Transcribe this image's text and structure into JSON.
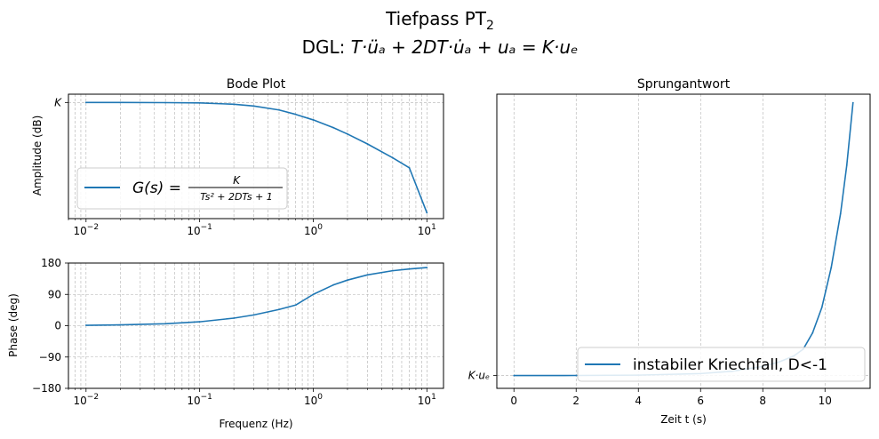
{
  "figure": {
    "title_line1": "Tiefpass PT",
    "title_line1_sub": "2",
    "title_line2_prefix": "DGL: ",
    "title_line2_formula": "T·üₐ + 2DT·u̇ₐ + uₐ = K·uₑ"
  },
  "chart_data": [
    {
      "id": "bode-amplitude",
      "type": "line",
      "title": "Bode Plot",
      "xlabel": "",
      "ylabel": "Amplitude (dB)",
      "xscale": "log",
      "xlim": [
        0.007,
        14
      ],
      "ylim": [
        -42,
        3
      ],
      "grid": true,
      "x_ticks": [
        {
          "value": 0.01,
          "base": "10",
          "exp": "−2"
        },
        {
          "value": 0.1,
          "base": "10",
          "exp": "−1"
        },
        {
          "value": 1,
          "base": "10",
          "exp": "0"
        },
        {
          "value": 10,
          "base": "10",
          "exp": "1"
        }
      ],
      "y_ticks": [
        {
          "value": 0,
          "label": "K"
        }
      ],
      "legend": {
        "placement": "lower-left",
        "entries": [
          {
            "label": "G(s) = K / (Ts² + 2DTs + 1)",
            "color": "#1f77b4"
          }
        ]
      },
      "series": [
        {
          "color": "#1f77b4",
          "x": [
            0.01,
            0.02,
            0.05,
            0.1,
            0.2,
            0.3,
            0.5,
            0.7,
            1.0,
            1.5,
            2,
            3,
            5,
            7,
            10
          ],
          "y": [
            0.0,
            -0.01,
            -0.05,
            -0.17,
            -0.64,
            -1.29,
            -2.7,
            -4.3,
            -6.3,
            -9.1,
            -11.4,
            -15.0,
            -20.0,
            -23.6,
            -39.9
          ]
        }
      ]
    },
    {
      "id": "bode-phase",
      "type": "line",
      "title": "",
      "xlabel": "Frequenz (Hz)",
      "ylabel": "Phase (deg)",
      "xscale": "log",
      "xlim": [
        0.007,
        14
      ],
      "ylim": [
        -180,
        180
      ],
      "grid": true,
      "x_ticks": [
        {
          "value": 0.01,
          "base": "10",
          "exp": "−2"
        },
        {
          "value": 0.1,
          "base": "10",
          "exp": "−1"
        },
        {
          "value": 1,
          "base": "10",
          "exp": "0"
        },
        {
          "value": 10,
          "base": "10",
          "exp": "1"
        }
      ],
      "y_ticks": [
        {
          "value": 180,
          "label": "180"
        },
        {
          "value": 90,
          "label": "90"
        },
        {
          "value": 0,
          "label": "0"
        },
        {
          "value": -90,
          "label": "−90"
        },
        {
          "value": -180,
          "label": "−180"
        }
      ],
      "series": [
        {
          "color": "#1f77b4",
          "x": [
            0.01,
            0.02,
            0.05,
            0.1,
            0.2,
            0.3,
            0.5,
            0.7,
            1.0,
            1.5,
            2,
            3,
            5,
            7,
            10
          ],
          "y": [
            1.2,
            2.3,
            5.7,
            11.2,
            21.7,
            31.0,
            46.6,
            59.3,
            90.0,
            117.0,
            131.0,
            146.0,
            158.0,
            163.0,
            167.0
          ]
        }
      ]
    },
    {
      "id": "step-response",
      "type": "line",
      "title": "Sprungantwort",
      "xlabel": "Zeit t (s)",
      "ylabel": "",
      "xlim": [
        -0.55,
        11.45
      ],
      "ylim": [
        -0.045,
        0.99
      ],
      "grid": true,
      "x_ticks": [
        {
          "value": 0,
          "label": "0"
        },
        {
          "value": 2,
          "label": "2"
        },
        {
          "value": 4,
          "label": "4"
        },
        {
          "value": 6,
          "label": "6"
        },
        {
          "value": 8,
          "label": "8"
        },
        {
          "value": 10,
          "label": "10"
        }
      ],
      "y_ticks": [
        {
          "value": 0,
          "label": "K·uₑ"
        }
      ],
      "legend": {
        "placement": "lower-right",
        "entries": [
          {
            "label": "instabiler Kriechfall, D<-1",
            "color": "#1f77b4"
          }
        ]
      },
      "series": [
        {
          "color": "#1f77b4",
          "x": [
            0,
            2,
            4,
            6,
            7,
            8,
            8.5,
            9,
            9.3,
            9.6,
            9.9,
            10.2,
            10.5,
            10.7,
            10.9
          ],
          "y": [
            0,
            0.0003,
            0.0015,
            0.007,
            0.015,
            0.032,
            0.047,
            0.069,
            0.093,
            0.15,
            0.24,
            0.38,
            0.57,
            0.74,
            0.96
          ]
        }
      ]
    }
  ]
}
